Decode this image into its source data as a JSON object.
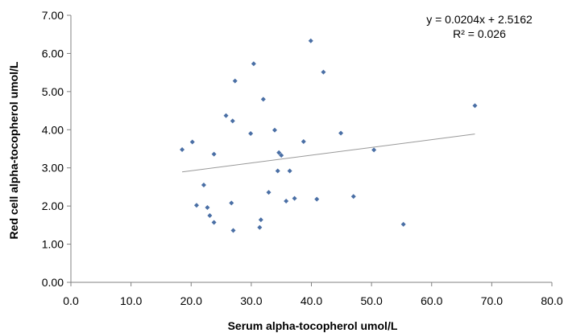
{
  "chart_data": {
    "type": "scatter",
    "xlabel": "Serum alpha-tocopherol umol/L",
    "ylabel": "Red cell alpha-tocopherol umol/L",
    "xlim": [
      0,
      80
    ],
    "ylim": [
      0,
      7
    ],
    "xticks": [
      "0.0",
      "10.0",
      "20.0",
      "30.0",
      "40.0",
      "50.0",
      "60.0",
      "70.0",
      "80.0"
    ],
    "yticks": [
      "0.00",
      "1.00",
      "2.00",
      "3.00",
      "4.00",
      "5.00",
      "6.00",
      "7.00"
    ],
    "grid": false,
    "legend": "none",
    "marker_color": "#4a6fa5",
    "trendline": {
      "equation": "y = 0.0204x + 2.5162",
      "r_squared": "R² = 0.026",
      "slope": 0.0204,
      "intercept": 2.5162,
      "x_range": [
        18.5,
        67.2
      ]
    },
    "points": [
      {
        "x": 18.5,
        "y": 3.48
      },
      {
        "x": 20.2,
        "y": 3.68
      },
      {
        "x": 20.9,
        "y": 2.02
      },
      {
        "x": 22.1,
        "y": 2.55
      },
      {
        "x": 22.7,
        "y": 1.96
      },
      {
        "x": 23.1,
        "y": 1.75
      },
      {
        "x": 23.8,
        "y": 1.57
      },
      {
        "x": 23.8,
        "y": 3.36
      },
      {
        "x": 25.8,
        "y": 4.37
      },
      {
        "x": 26.7,
        "y": 2.08
      },
      {
        "x": 26.9,
        "y": 4.23
      },
      {
        "x": 27.0,
        "y": 1.36
      },
      {
        "x": 27.3,
        "y": 5.28
      },
      {
        "x": 29.9,
        "y": 3.9
      },
      {
        "x": 30.4,
        "y": 5.73
      },
      {
        "x": 31.4,
        "y": 1.44
      },
      {
        "x": 31.6,
        "y": 1.64
      },
      {
        "x": 32.0,
        "y": 4.8
      },
      {
        "x": 32.9,
        "y": 2.36
      },
      {
        "x": 33.9,
        "y": 3.99
      },
      {
        "x": 34.4,
        "y": 2.92
      },
      {
        "x": 34.6,
        "y": 3.4
      },
      {
        "x": 35.0,
        "y": 3.33
      },
      {
        "x": 35.8,
        "y": 2.13
      },
      {
        "x": 36.4,
        "y": 2.92
      },
      {
        "x": 37.2,
        "y": 2.2
      },
      {
        "x": 38.7,
        "y": 3.69
      },
      {
        "x": 39.9,
        "y": 6.33
      },
      {
        "x": 40.9,
        "y": 2.18
      },
      {
        "x": 42.0,
        "y": 5.51
      },
      {
        "x": 44.9,
        "y": 3.91
      },
      {
        "x": 47.0,
        "y": 2.25
      },
      {
        "x": 50.4,
        "y": 3.47
      },
      {
        "x": 55.3,
        "y": 1.52
      },
      {
        "x": 67.2,
        "y": 4.63
      }
    ]
  }
}
